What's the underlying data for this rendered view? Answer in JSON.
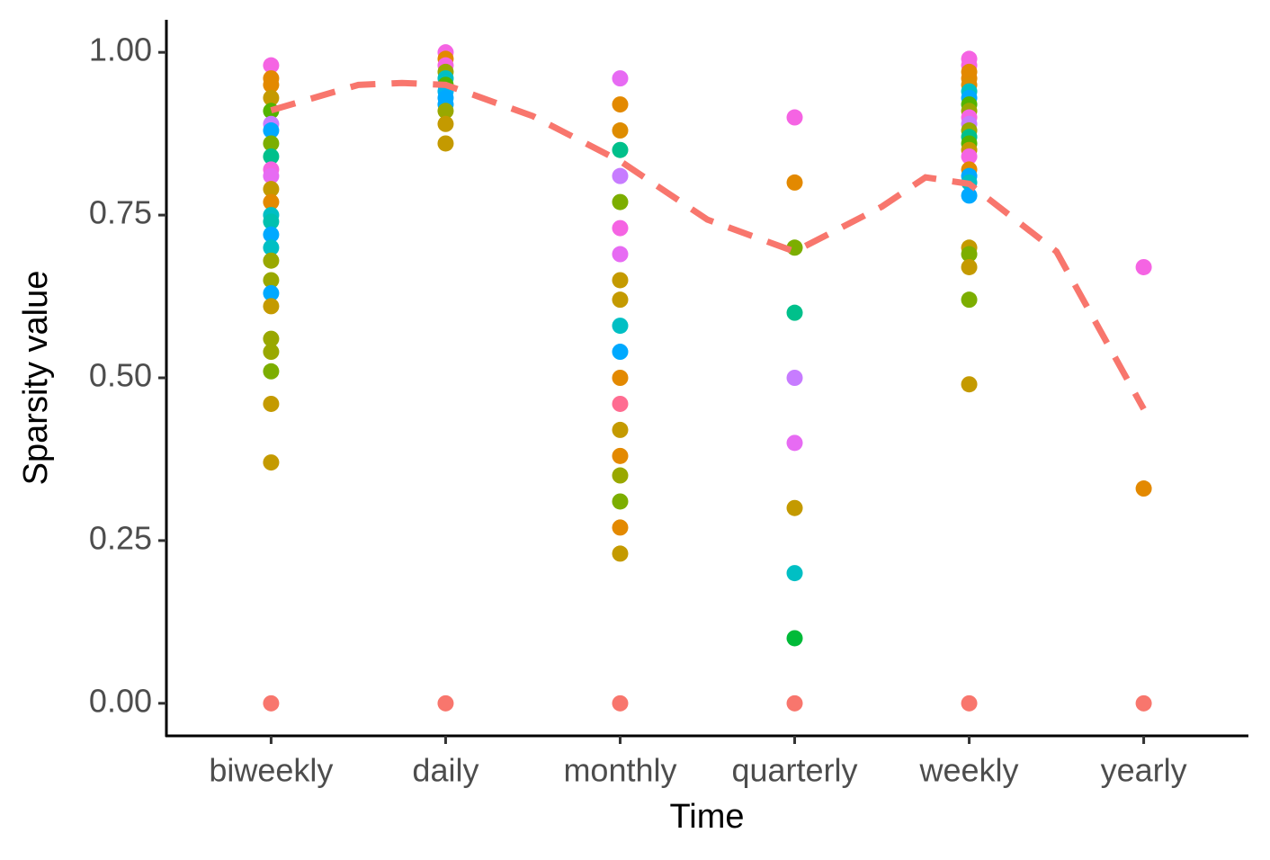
{
  "chart_data": {
    "type": "strip",
    "xlabel": "Time",
    "ylabel": "Sparsity value",
    "categories": [
      "biweekly",
      "daily",
      "monthly",
      "quarterly",
      "weekly",
      "yearly"
    ],
    "values": [
      [
        0.98,
        0.96,
        0.95,
        0.93,
        0.91,
        0.89,
        0.88,
        0.86,
        0.84,
        0.82,
        0.81,
        0.79,
        0.77,
        0.75,
        0.74,
        0.72,
        0.7,
        0.68,
        0.65,
        0.63,
        0.61,
        0.56,
        0.54,
        0.51,
        0.46,
        0.37,
        0
      ],
      [
        1.0,
        0.99,
        0.98,
        0.97,
        0.96,
        0.95,
        0.94,
        0.93,
        0.92,
        0.91,
        0.89,
        0.86,
        0
      ],
      [
        0.96,
        0.92,
        0.88,
        0.85,
        0.81,
        0.77,
        0.73,
        0.69,
        0.65,
        0.62,
        0.58,
        0.54,
        0.5,
        0.46,
        0.42,
        0.38,
        0.35,
        0.31,
        0.27,
        0.23,
        0
      ],
      [
        0.9,
        0.8,
        0.7,
        0.6,
        0.5,
        0.4,
        0.3,
        0.2,
        0.1,
        0
      ],
      [
        0.99,
        0.98,
        0.97,
        0.96,
        0.95,
        0.94,
        0.93,
        0.92,
        0.91,
        0.9,
        0.89,
        0.88,
        0.87,
        0.86,
        0.85,
        0.84,
        0.82,
        0.81,
        0.8,
        0.78,
        0.7,
        0.69,
        0.67,
        0.62,
        0.49,
        0
      ],
      [
        0.67,
        0.33,
        0
      ]
    ],
    "colors": [
      [
        "#F564E3",
        "#E38900",
        "#E38900",
        "#C49A00",
        "#53B400",
        "#C77CFF",
        "#00A9FF",
        "#7CAE00",
        "#00C08B",
        "#F564E3",
        "#E76BF3",
        "#C49A00",
        "#E38900",
        "#00BFC4",
        "#00C0AF",
        "#00A9FF",
        "#00BFC4",
        "#99A800",
        "#99A800",
        "#00A9FF",
        "#C49A00",
        "#99A800",
        "#99A800",
        "#7CAE00",
        "#C49A00",
        "#C49A00",
        "#F8766D"
      ],
      [
        "#F564E3",
        "#E38900",
        "#F564E3",
        "#99A800",
        "#00BFC4",
        "#53B400",
        "#00B4F0",
        "#00A9FF",
        "#00A9FF",
        "#99A800",
        "#C49A00",
        "#C49A00",
        "#F8766D"
      ],
      [
        "#E76BF3",
        "#E38900",
        "#DE8C00",
        "#00C08B",
        "#C77CFF",
        "#7CAE00",
        "#F564E3",
        "#E76BF3",
        "#C49A00",
        "#C49A00",
        "#00BFC4",
        "#00A9FF",
        "#E38900",
        "#FF6C91",
        "#C49A00",
        "#E38900",
        "#99A800",
        "#7CAE00",
        "#E38900",
        "#C49A00",
        "#F8766D"
      ],
      [
        "#F564E3",
        "#E38900",
        "#7CAE00",
        "#00C08B",
        "#C77CFF",
        "#E76BF3",
        "#C49A00",
        "#00BFC4",
        "#00BA38",
        "#F8766D"
      ],
      [
        "#F564E3",
        "#F564E3",
        "#E38900",
        "#E38900",
        "#DE8C00",
        "#00BFC4",
        "#00A9FF",
        "#53B400",
        "#99A800",
        "#F564E3",
        "#C77CFF",
        "#99A800",
        "#00C08B",
        "#53B400",
        "#C49A00",
        "#F564E3",
        "#E38900",
        "#00A9FF",
        "#00BFC4",
        "#00A9FF",
        "#C49A00",
        "#7CAE00",
        "#C49A00",
        "#7CAE00",
        "#C49A00",
        "#F8766D"
      ],
      [
        "#F564E3",
        "#E38900",
        "#F8766D"
      ]
    ],
    "trend": {
      "color": "#F8766D",
      "x": [
        1,
        1.5,
        1.75,
        2,
        2.5,
        3,
        3.5,
        4,
        4.5,
        4.75,
        5,
        5.5,
        6
      ],
      "values": [
        0.911,
        0.95,
        0.953,
        0.95,
        0.902,
        0.833,
        0.743,
        0.694,
        0.763,
        0.808,
        0.798,
        0.694,
        0.452
      ]
    },
    "ylim": [
      -0.05,
      1.05
    ],
    "yticks": [
      {
        "value": 0,
        "label": "0.00"
      },
      {
        "value": 0.25,
        "label": "0.25"
      },
      {
        "value": 0.5,
        "label": "0.50"
      },
      {
        "value": 0.75,
        "label": "0.75"
      },
      {
        "value": 1,
        "label": "1.00"
      }
    ]
  }
}
